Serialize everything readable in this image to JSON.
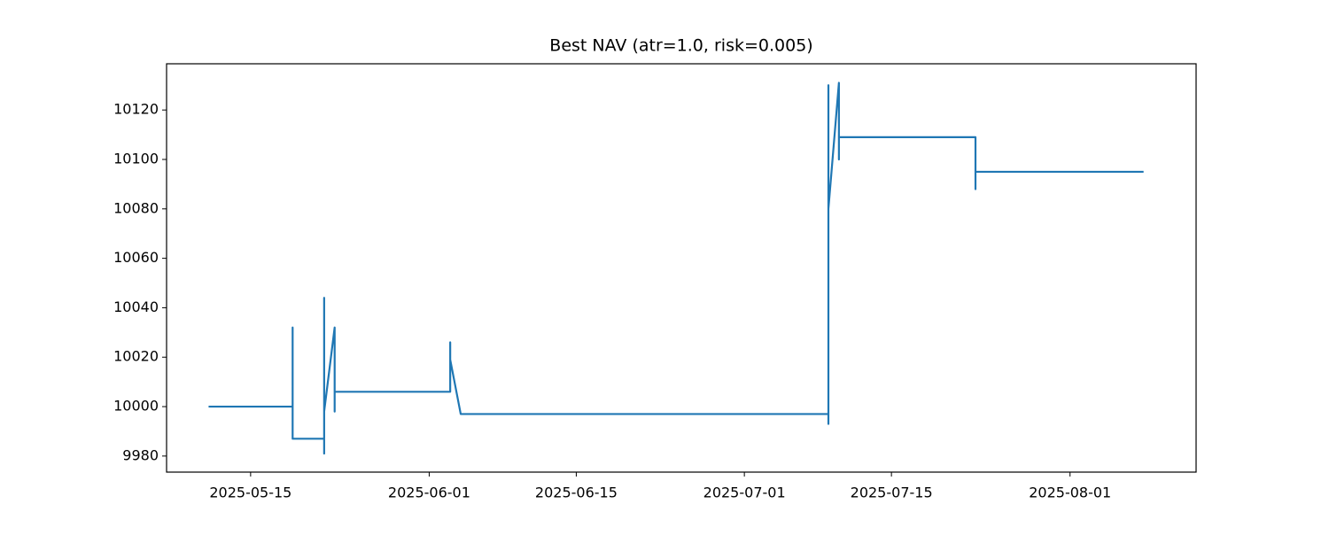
{
  "chart_data": {
    "type": "line",
    "title": "Best NAV (atr=1.0, risk=0.005)",
    "x": [
      "2025-05-11",
      "2025-05-19",
      "2025-05-19",
      "2025-05-19",
      "2025-05-19",
      "2025-05-19",
      "2025-05-22",
      "2025-05-22",
      "2025-05-22",
      "2025-05-22",
      "2025-05-22",
      "2025-05-22",
      "2025-05-23",
      "2025-05-23",
      "2025-05-23",
      "2025-05-23",
      "2025-06-03",
      "2025-06-03",
      "2025-06-03",
      "2025-06-03",
      "2025-06-04",
      "2025-07-09",
      "2025-07-09",
      "2025-07-09",
      "2025-07-09",
      "2025-07-09",
      "2025-07-09",
      "2025-07-09",
      "2025-07-09",
      "2025-07-10",
      "2025-07-10",
      "2025-07-10",
      "2025-07-10",
      "2025-07-23",
      "2025-07-23",
      "2025-07-23",
      "2025-07-23",
      "2025-07-23",
      "2025-08-08"
    ],
    "series": [
      {
        "color": "#1f77b4",
        "values": [
          10000,
          10000,
          10032,
          9994,
          10014,
          9987,
          9987,
          9981,
          10008,
          9983,
          10044,
          9998,
          10032,
          9998,
          10029,
          10006,
          10006,
          10026,
          10007,
          10019,
          9997,
          9997,
          9993,
          10025,
          10010,
          10061,
          10040,
          10130,
          10080,
          10131,
          10100,
          10122,
          10109,
          10109,
          10095,
          10103,
          10088,
          10095,
          10095
        ]
      }
    ],
    "xlim": [
      "2025-05-07",
      "2025-08-13"
    ],
    "xticks": [
      "2025-05-15",
      "2025-06-01",
      "2025-06-15",
      "2025-07-01",
      "2025-07-15",
      "2025-08-01"
    ],
    "ylim": [
      9973.5,
      10138.7
    ],
    "yticks": [
      9980,
      10000,
      10020,
      10040,
      10060,
      10080,
      10100,
      10120
    ]
  }
}
